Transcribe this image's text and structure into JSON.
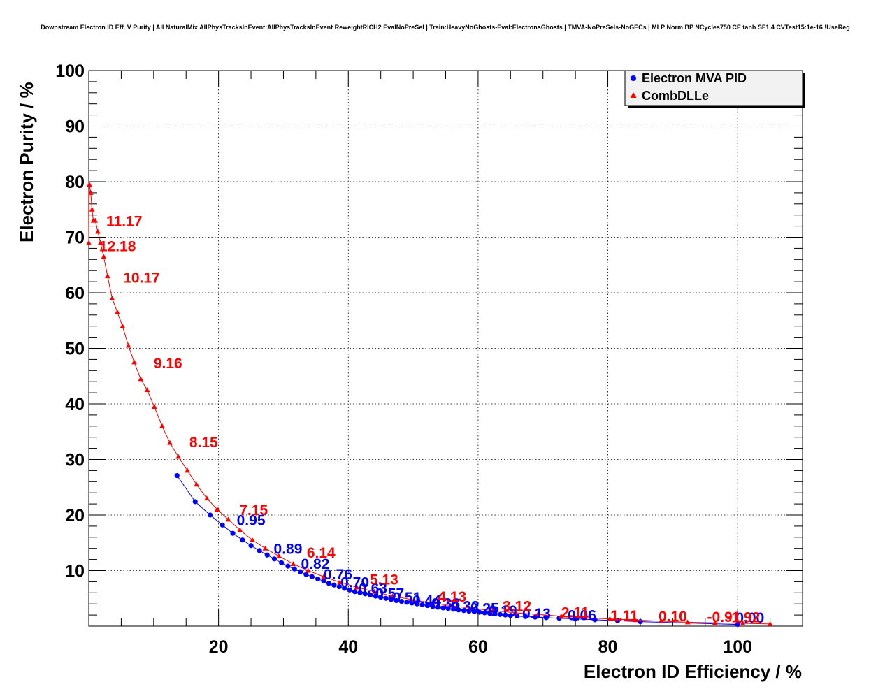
{
  "chart_data": {
    "type": "line",
    "title": "Downstream Electron ID Eff. V Purity | All NaturalMix AllPhysTracksInEvent:AllPhysTracksInEvent ReweightRICH2 EvalNoPreSel | Train:HeavyNoGhosts-Eval:ElectronsGhosts | TMVA-NoPreSels-NoGECs | MLP Norm BP NCycles750 CE tanh SF1.4 CVTest15:1e-16 !UseReg",
    "xlabel": "Electron ID Efficiency / %",
    "ylabel": "Electron Purity / %",
    "xlim": [
      0,
      110
    ],
    "ylim": [
      0,
      100
    ],
    "xticks": [
      20,
      40,
      60,
      80,
      100
    ],
    "yticks": [
      10,
      20,
      30,
      40,
      50,
      60,
      70,
      80,
      90,
      100
    ],
    "grid": true,
    "legend_position": "top-right",
    "series": [
      {
        "name": "Electron MVA PID",
        "color": "#0000ff",
        "marker": "circle",
        "x": [
          13.6,
          16.4,
          18.7,
          20.6,
          22.2,
          23.7,
          25.0,
          26.3,
          27.5,
          28.6,
          29.7,
          30.7,
          31.7,
          32.6,
          33.5,
          34.4,
          35.3,
          36.2,
          37.0,
          37.8,
          38.6,
          39.4,
          40.2,
          41.0,
          41.8,
          42.6,
          43.4,
          44.2,
          45.0,
          45.8,
          46.6,
          47.4,
          48.2,
          49.0,
          49.8,
          50.6,
          51.4,
          52.2,
          53.0,
          53.8,
          54.6,
          55.4,
          56.2,
          57.0,
          57.8,
          58.6,
          59.4,
          60.2,
          61.0,
          61.8,
          62.6,
          63.4,
          64.2,
          65.0,
          66.0,
          67.3,
          68.8,
          70.5,
          72.5,
          75.0,
          78.0,
          81.5,
          85.0,
          100.0
        ],
        "y": [
          27.1,
          22.4,
          20.0,
          18.2,
          16.7,
          15.5,
          14.5,
          13.6,
          12.8,
          12.1,
          11.4,
          10.8,
          10.3,
          9.8,
          9.3,
          8.9,
          8.5,
          8.1,
          7.7,
          7.4,
          7.1,
          6.8,
          6.5,
          6.2,
          6.0,
          5.8,
          5.6,
          5.4,
          5.2,
          5.0,
          4.8,
          4.6,
          4.45,
          4.3,
          4.15,
          4.0,
          3.85,
          3.7,
          3.55,
          3.4,
          3.28,
          3.16,
          3.04,
          2.92,
          2.8,
          2.7,
          2.6,
          2.5,
          2.4,
          2.3,
          2.2,
          2.1,
          2.0,
          1.9,
          1.8,
          1.72,
          1.62,
          1.52,
          1.42,
          1.3,
          1.15,
          0.98,
          0.8,
          0.3
        ],
        "annotations": [
          {
            "text": "0.95",
            "x": 22.8,
            "y": 18.2
          },
          {
            "text": "0.89",
            "x": 28.5,
            "y": 13.0
          },
          {
            "text": "0.82",
            "x": 32.7,
            "y": 10.3
          },
          {
            "text": "0.76",
            "x": 36.2,
            "y": 8.4
          },
          {
            "text": "0.70",
            "x": 38.8,
            "y": 7.0
          },
          {
            "text": "0.63",
            "x": 41.6,
            "y": 5.9
          },
          {
            "text": "0.57",
            "x": 44.2,
            "y": 5.0
          },
          {
            "text": "0.51",
            "x": 46.8,
            "y": 4.3
          },
          {
            "text": "0.44",
            "x": 49.9,
            "y": 3.7
          },
          {
            "text": "0.38",
            "x": 52.8,
            "y": 3.2
          },
          {
            "text": "0.32",
            "x": 55.8,
            "y": 2.7
          },
          {
            "text": "0.25",
            "x": 58.8,
            "y": 2.3
          },
          {
            "text": "0.19",
            "x": 61.6,
            "y": 1.9
          },
          {
            "text": "0.13",
            "x": 66.8,
            "y": 1.4
          },
          {
            "text": "0.06",
            "x": 73.8,
            "y": 1.1
          },
          {
            "text": "0.00",
            "x": 99.7,
            "y": 0.6
          }
        ]
      },
      {
        "name": "CombDLLe",
        "color": "#ff0000",
        "marker": "triangle",
        "x": [
          0.0,
          0.1,
          0.3,
          0.5,
          0.7,
          1.0,
          1.4,
          1.8,
          2.3,
          2.9,
          3.6,
          4.4,
          5.2,
          6.1,
          7.0,
          8.0,
          9.0,
          10.1,
          11.3,
          12.5,
          13.8,
          15.2,
          16.6,
          18.2,
          19.8,
          21.5,
          23.3,
          25.2,
          27.2,
          29.3,
          31.5,
          33.8,
          36.2,
          38.7,
          41.3,
          44.0,
          46.8,
          49.7,
          52.7,
          55.8,
          59.0,
          62.3,
          65.7,
          69.2,
          72.8,
          76.5,
          80.3,
          84.2,
          88.2,
          92.3,
          96.5,
          100.8,
          105.0
        ],
        "y": [
          69.0,
          79.5,
          78.0,
          75.0,
          73.0,
          73.0,
          71.0,
          69.0,
          66.5,
          63.0,
          59.0,
          56.5,
          54.0,
          50.5,
          47.5,
          44.5,
          42.5,
          39.5,
          36.0,
          33.0,
          30.5,
          28.0,
          25.5,
          23.0,
          21.0,
          19.2,
          17.3,
          15.5,
          14.0,
          12.6,
          11.2,
          10.0,
          8.9,
          7.9,
          7.0,
          6.2,
          5.4,
          4.8,
          4.2,
          3.7,
          3.2,
          2.8,
          2.4,
          2.1,
          1.8,
          1.5,
          1.3,
          1.1,
          0.9,
          0.7,
          0.6,
          0.5,
          0.4
        ],
        "annotations": [
          {
            "text": "11.17",
            "x": 2.7,
            "y": 72.0
          },
          {
            "text": "12.18",
            "x": 1.6,
            "y": 67.5
          },
          {
            "text": "10.17",
            "x": 5.3,
            "y": 61.8
          },
          {
            "text": "9.16",
            "x": 10.0,
            "y": 46.4
          },
          {
            "text": "8.15",
            "x": 15.5,
            "y": 32.2
          },
          {
            "text": "7.15",
            "x": 23.2,
            "y": 20.0
          },
          {
            "text": "6.14",
            "x": 33.6,
            "y": 12.3
          },
          {
            "text": "5.13",
            "x": 43.3,
            "y": 7.5
          },
          {
            "text": "4.13",
            "x": 53.8,
            "y": 4.4
          },
          {
            "text": "3.12",
            "x": 63.8,
            "y": 2.7
          },
          {
            "text": "2.11",
            "x": 72.8,
            "y": 1.6
          },
          {
            "text": "1.11",
            "x": 80.4,
            "y": 1.0
          },
          {
            "text": "0.10",
            "x": 87.8,
            "y": 0.85
          },
          {
            "text": "-0.91",
            "x": 95.3,
            "y": 0.75
          },
          {
            "text": "-1.92",
            "x": 98.3,
            "y": 0.7
          }
        ]
      }
    ]
  }
}
